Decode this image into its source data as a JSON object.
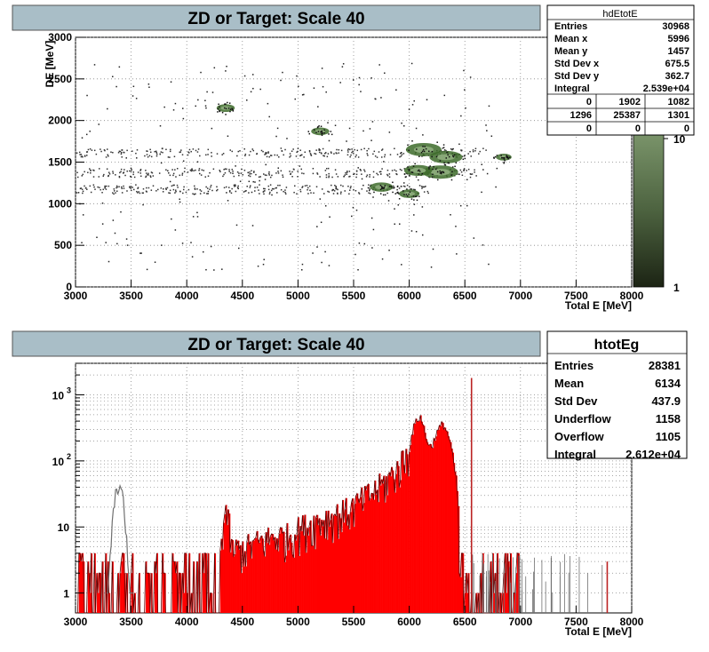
{
  "panels": {
    "top": {
      "title": "ZD or Target: Scale 40",
      "ylabel": "DE [MeV]",
      "xlabel": "Total E [MeV]",
      "stats_title": "hdEtotE",
      "stats": [
        {
          "label": "Entries",
          "value": "30968"
        },
        {
          "label": "Mean x",
          "value": "5996"
        },
        {
          "label": "Mean y",
          "value": "1457"
        },
        {
          "label": "Std Dev x",
          "value": "675.5"
        },
        {
          "label": "Std Dev y",
          "value": "362.7"
        },
        {
          "label": "Integral",
          "value": "2.539e+04"
        }
      ],
      "grid_counts": [
        [
          "0",
          "1902",
          "1082"
        ],
        [
          "1296",
          "25387",
          "1301"
        ],
        [
          "0",
          "0",
          "0"
        ]
      ],
      "palette_labels": [
        "10",
        "1"
      ]
    },
    "bottom": {
      "title": "ZD or Target: Scale 40",
      "xlabel": "Total E [MeV]",
      "stats_title": "htotEg",
      "stats": [
        {
          "label": "Entries",
          "value": "28381"
        },
        {
          "label": "Mean",
          "value": "6134"
        },
        {
          "label": "Std Dev",
          "value": "437.9"
        },
        {
          "label": "Underflow",
          "value": "1158"
        },
        {
          "label": "Overflow",
          "value": "1105"
        },
        {
          "label": "Integral",
          "value": "2.612e+04"
        }
      ]
    }
  },
  "colors": {
    "title_bg": "#a9bec7",
    "palette_top": "#7a946a",
    "palette_bottom": "#1c2414",
    "hist_fill": "#ff0000",
    "hist_line": "#5a0000",
    "hist_gray": "#707070",
    "blob": "#3d6b2a"
  },
  "chart_data": [
    {
      "type": "heatmap",
      "title": "ZD or Target: Scale 40",
      "xlabel": "Total E [MeV]",
      "ylabel": "DE [MeV]",
      "xlim": [
        3000,
        8000
      ],
      "ylim": [
        0,
        3000
      ],
      "x_ticks": [
        "3000",
        "3500",
        "4000",
        "4500",
        "5000",
        "5500",
        "6000",
        "6500",
        "7000",
        "7500",
        "8000"
      ],
      "y_ticks": [
        "0",
        "500",
        "1000",
        "1500",
        "2000",
        "2500",
        "3000"
      ],
      "grid": true,
      "clusters": [
        {
          "x": 4350,
          "y": 2150,
          "weight": 3
        },
        {
          "x": 5200,
          "y": 1870,
          "weight": 3
        },
        {
          "x": 6130,
          "y": 1650,
          "weight": 10
        },
        {
          "x": 6330,
          "y": 1560,
          "weight": 9
        },
        {
          "x": 6280,
          "y": 1380,
          "weight": 10
        },
        {
          "x": 6080,
          "y": 1400,
          "weight": 7
        },
        {
          "x": 5750,
          "y": 1200,
          "weight": 5
        },
        {
          "x": 6000,
          "y": 1120,
          "weight": 4
        },
        {
          "x": 6850,
          "y": 1560,
          "weight": 2
        }
      ],
      "bands": [
        {
          "y": 1620,
          "x_from": 3000,
          "x_to": 6700
        },
        {
          "y": 1380,
          "x_from": 3000,
          "x_to": 6600
        },
        {
          "y": 1180,
          "x_from": 3000,
          "x_to": 6200
        }
      ]
    },
    {
      "type": "area",
      "title": "ZD or Target: Scale 40",
      "xlabel": "Total E [MeV]",
      "ylabel": "",
      "xlim": [
        3000,
        8000
      ],
      "log_y": true,
      "ylim": [
        0.5,
        3000
      ],
      "x_ticks": [
        "3000",
        "3500",
        "4000",
        "4500",
        "5000",
        "5500",
        "6000",
        "6500",
        "7000",
        "7500",
        "8000"
      ],
      "y_ticks": [
        "1",
        "10",
        "10^2",
        "10^3"
      ],
      "grid": true,
      "x": [
        3000,
        3100,
        3200,
        3300,
        3350,
        3400,
        3450,
        3500,
        3600,
        3700,
        3800,
        3900,
        4000,
        4100,
        4200,
        4300,
        4350,
        4400,
        4500,
        4600,
        4700,
        4800,
        4900,
        5000,
        5100,
        5200,
        5300,
        5400,
        5500,
        5600,
        5700,
        5800,
        5900,
        6000,
        6050,
        6100,
        6150,
        6200,
        6250,
        6300,
        6350,
        6400,
        6450,
        6500,
        6550,
        6600,
        6700,
        6800,
        6900,
        7000
      ],
      "values": [
        2,
        2,
        2,
        3,
        3,
        3,
        2,
        2,
        2,
        2,
        2,
        2,
        2,
        3,
        3,
        4,
        20,
        5,
        5,
        6,
        7,
        8,
        8,
        10,
        12,
        14,
        16,
        18,
        22,
        30,
        40,
        55,
        85,
        150,
        380,
        480,
        220,
        160,
        280,
        380,
        250,
        90,
        2,
        1,
        1,
        1,
        1,
        1,
        1,
        0
      ],
      "gray_peak": {
        "x": [
          3300,
          3350,
          3400,
          3450,
          3500
        ],
        "values": [
          12,
          40,
          45,
          20,
          6
        ]
      },
      "spikes": [
        {
          "x": 6560,
          "value": 1800
        },
        {
          "x": 7780,
          "value": 3
        }
      ]
    }
  ]
}
